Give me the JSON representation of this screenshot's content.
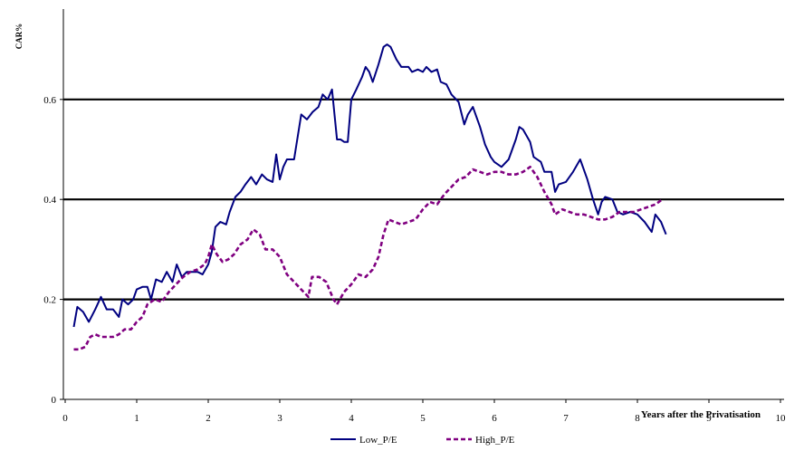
{
  "chart_data": {
    "type": "line",
    "title": "",
    "xlabel": "Years after the Privatisation",
    "ylabel": "CAR%",
    "xlim": [
      0,
      10
    ],
    "ylim": [
      0,
      0.8
    ],
    "x_ticks": [
      "0",
      "1",
      "2",
      "3",
      "4",
      "5",
      "6",
      "7",
      "8",
      "9",
      "10"
    ],
    "y_ticks": [
      "0",
      "0.2",
      "0.4",
      "0.6"
    ],
    "y_tick_values": [
      0,
      0.2,
      0.4,
      0.6
    ],
    "grid": "horizontal",
    "legend_position": "bottom",
    "series": [
      {
        "name": "Low_P/E",
        "color": "#000080",
        "style": "solid",
        "points": [
          [
            0.12,
            0.145
          ],
          [
            0.17,
            0.185
          ],
          [
            0.25,
            0.175
          ],
          [
            0.33,
            0.155
          ],
          [
            0.42,
            0.18
          ],
          [
            0.5,
            0.205
          ],
          [
            0.58,
            0.18
          ],
          [
            0.67,
            0.18
          ],
          [
            0.75,
            0.165
          ],
          [
            0.8,
            0.2
          ],
          [
            0.88,
            0.19
          ],
          [
            0.95,
            0.2
          ],
          [
            1.0,
            0.22
          ],
          [
            1.08,
            0.225
          ],
          [
            1.15,
            0.225
          ],
          [
            1.2,
            0.2
          ],
          [
            1.27,
            0.24
          ],
          [
            1.35,
            0.235
          ],
          [
            1.42,
            0.255
          ],
          [
            1.5,
            0.235
          ],
          [
            1.56,
            0.27
          ],
          [
            1.63,
            0.245
          ],
          [
            1.7,
            0.255
          ],
          [
            1.78,
            0.255
          ],
          [
            1.85,
            0.255
          ],
          [
            1.92,
            0.25
          ],
          [
            2.0,
            0.27
          ],
          [
            2.05,
            0.295
          ],
          [
            2.1,
            0.345
          ],
          [
            2.17,
            0.355
          ],
          [
            2.25,
            0.35
          ],
          [
            2.3,
            0.375
          ],
          [
            2.38,
            0.405
          ],
          [
            2.45,
            0.415
          ],
          [
            2.52,
            0.43
          ],
          [
            2.6,
            0.445
          ],
          [
            2.67,
            0.43
          ],
          [
            2.75,
            0.45
          ],
          [
            2.82,
            0.44
          ],
          [
            2.9,
            0.435
          ],
          [
            2.95,
            0.49
          ],
          [
            3.0,
            0.44
          ],
          [
            3.05,
            0.465
          ],
          [
            3.1,
            0.48
          ],
          [
            3.2,
            0.48
          ],
          [
            3.3,
            0.57
          ],
          [
            3.38,
            0.56
          ],
          [
            3.46,
            0.575
          ],
          [
            3.54,
            0.585
          ],
          [
            3.6,
            0.61
          ],
          [
            3.67,
            0.6
          ],
          [
            3.73,
            0.62
          ],
          [
            3.8,
            0.52
          ],
          [
            3.85,
            0.52
          ],
          [
            3.9,
            0.515
          ],
          [
            3.95,
            0.515
          ],
          [
            4.0,
            0.6
          ],
          [
            4.07,
            0.62
          ],
          [
            4.15,
            0.645
          ],
          [
            4.2,
            0.665
          ],
          [
            4.25,
            0.655
          ],
          [
            4.3,
            0.635
          ],
          [
            4.38,
            0.67
          ],
          [
            4.45,
            0.705
          ],
          [
            4.5,
            0.71
          ],
          [
            4.55,
            0.705
          ],
          [
            4.63,
            0.68
          ],
          [
            4.7,
            0.665
          ],
          [
            4.8,
            0.665
          ],
          [
            4.85,
            0.655
          ],
          [
            4.93,
            0.66
          ],
          [
            5.0,
            0.655
          ],
          [
            5.05,
            0.665
          ],
          [
            5.12,
            0.655
          ],
          [
            5.2,
            0.66
          ],
          [
            5.25,
            0.635
          ],
          [
            5.33,
            0.63
          ],
          [
            5.4,
            0.61
          ],
          [
            5.5,
            0.595
          ],
          [
            5.58,
            0.55
          ],
          [
            5.63,
            0.57
          ],
          [
            5.7,
            0.585
          ],
          [
            5.8,
            0.545
          ],
          [
            5.87,
            0.51
          ],
          [
            5.95,
            0.485
          ],
          [
            6.0,
            0.475
          ],
          [
            6.1,
            0.465
          ],
          [
            6.2,
            0.48
          ],
          [
            6.3,
            0.52
          ],
          [
            6.35,
            0.545
          ],
          [
            6.4,
            0.54
          ],
          [
            6.5,
            0.515
          ],
          [
            6.55,
            0.485
          ],
          [
            6.65,
            0.475
          ],
          [
            6.7,
            0.455
          ],
          [
            6.8,
            0.455
          ],
          [
            6.85,
            0.415
          ],
          [
            6.9,
            0.43
          ],
          [
            7.0,
            0.435
          ],
          [
            7.1,
            0.455
          ],
          [
            7.2,
            0.48
          ],
          [
            7.3,
            0.44
          ],
          [
            7.38,
            0.4
          ],
          [
            7.45,
            0.37
          ],
          [
            7.5,
            0.395
          ],
          [
            7.55,
            0.405
          ],
          [
            7.65,
            0.4
          ],
          [
            7.72,
            0.375
          ],
          [
            7.8,
            0.37
          ],
          [
            7.9,
            0.375
          ],
          [
            8.0,
            0.37
          ],
          [
            8.1,
            0.355
          ],
          [
            8.2,
            0.335
          ],
          [
            8.25,
            0.37
          ],
          [
            8.33,
            0.355
          ],
          [
            8.4,
            0.33
          ]
        ]
      },
      {
        "name": "High_P/E",
        "color": "#800080",
        "style": "dashed",
        "points": [
          [
            0.12,
            0.1
          ],
          [
            0.2,
            0.1
          ],
          [
            0.28,
            0.105
          ],
          [
            0.35,
            0.125
          ],
          [
            0.42,
            0.13
          ],
          [
            0.5,
            0.125
          ],
          [
            0.58,
            0.125
          ],
          [
            0.67,
            0.125
          ],
          [
            0.75,
            0.13
          ],
          [
            0.83,
            0.14
          ],
          [
            0.92,
            0.14
          ],
          [
            1.0,
            0.155
          ],
          [
            1.08,
            0.165
          ],
          [
            1.15,
            0.19
          ],
          [
            1.25,
            0.2
          ],
          [
            1.35,
            0.195
          ],
          [
            1.45,
            0.215
          ],
          [
            1.55,
            0.23
          ],
          [
            1.65,
            0.245
          ],
          [
            1.75,
            0.255
          ],
          [
            1.85,
            0.26
          ],
          [
            1.95,
            0.27
          ],
          [
            2.0,
            0.285
          ],
          [
            2.05,
            0.31
          ],
          [
            2.12,
            0.29
          ],
          [
            2.2,
            0.275
          ],
          [
            2.28,
            0.28
          ],
          [
            2.36,
            0.29
          ],
          [
            2.45,
            0.31
          ],
          [
            2.55,
            0.32
          ],
          [
            2.63,
            0.34
          ],
          [
            2.72,
            0.33
          ],
          [
            2.8,
            0.3
          ],
          [
            2.9,
            0.3
          ],
          [
            3.0,
            0.285
          ],
          [
            3.1,
            0.25
          ],
          [
            3.2,
            0.235
          ],
          [
            3.3,
            0.22
          ],
          [
            3.4,
            0.205
          ],
          [
            3.45,
            0.245
          ],
          [
            3.55,
            0.245
          ],
          [
            3.65,
            0.235
          ],
          [
            3.75,
            0.2
          ],
          [
            3.8,
            0.19
          ],
          [
            3.9,
            0.215
          ],
          [
            4.0,
            0.23
          ],
          [
            4.1,
            0.25
          ],
          [
            4.2,
            0.245
          ],
          [
            4.3,
            0.26
          ],
          [
            4.38,
            0.285
          ],
          [
            4.45,
            0.33
          ],
          [
            4.52,
            0.36
          ],
          [
            4.6,
            0.355
          ],
          [
            4.7,
            0.35
          ],
          [
            4.8,
            0.355
          ],
          [
            4.9,
            0.36
          ],
          [
            5.0,
            0.38
          ],
          [
            5.1,
            0.395
          ],
          [
            5.2,
            0.39
          ],
          [
            5.3,
            0.41
          ],
          [
            5.4,
            0.425
          ],
          [
            5.5,
            0.44
          ],
          [
            5.6,
            0.445
          ],
          [
            5.7,
            0.46
          ],
          [
            5.8,
            0.455
          ],
          [
            5.9,
            0.45
          ],
          [
            6.0,
            0.455
          ],
          [
            6.1,
            0.455
          ],
          [
            6.2,
            0.45
          ],
          [
            6.3,
            0.45
          ],
          [
            6.4,
            0.455
          ],
          [
            6.5,
            0.465
          ],
          [
            6.6,
            0.445
          ],
          [
            6.7,
            0.415
          ],
          [
            6.8,
            0.39
          ],
          [
            6.85,
            0.37
          ],
          [
            6.95,
            0.38
          ],
          [
            7.05,
            0.375
          ],
          [
            7.15,
            0.37
          ],
          [
            7.25,
            0.37
          ],
          [
            7.35,
            0.365
          ],
          [
            7.45,
            0.36
          ],
          [
            7.55,
            0.36
          ],
          [
            7.65,
            0.365
          ],
          [
            7.75,
            0.375
          ],
          [
            7.85,
            0.375
          ],
          [
            7.95,
            0.375
          ],
          [
            8.05,
            0.38
          ],
          [
            8.15,
            0.385
          ],
          [
            8.25,
            0.39
          ],
          [
            8.35,
            0.4
          ]
        ]
      }
    ]
  }
}
